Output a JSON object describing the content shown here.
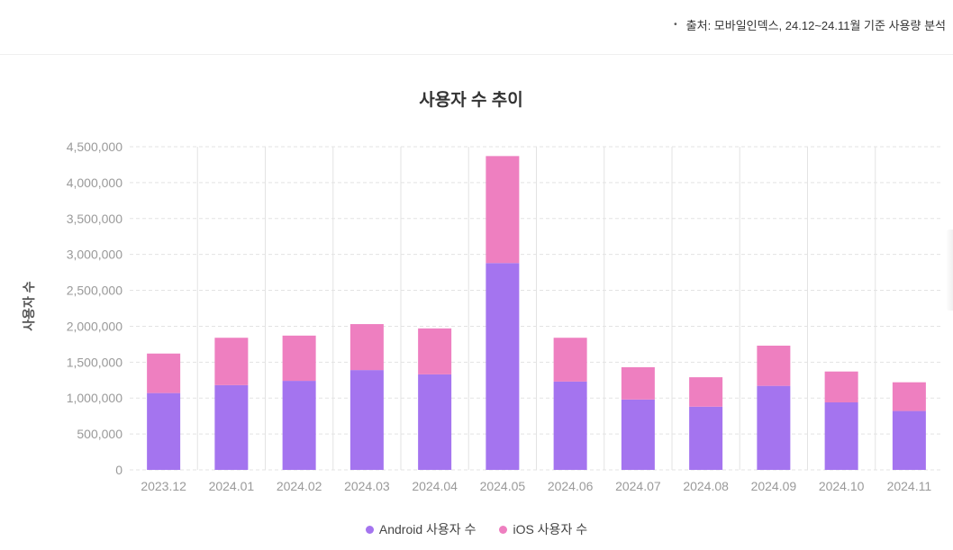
{
  "source": {
    "bullet": "•",
    "text": "출처: 모바일인덱스, 24.12~24.11월 기준 사용량 분석"
  },
  "colors": {
    "android": "#a474ef",
    "ios": "#ee7fc0",
    "grid": "#e3e3e3",
    "tick_text": "#9a9a9a",
    "title_text": "#333333"
  },
  "chart_data": {
    "type": "bar",
    "stacked": true,
    "title": "사용자 수 추이",
    "xlabel": "",
    "ylabel": "사용자 수",
    "ylim": [
      0,
      4500000
    ],
    "yticks": [
      0,
      500000,
      1000000,
      1500000,
      2000000,
      2500000,
      3000000,
      3500000,
      4000000,
      4500000
    ],
    "ytick_labels": [
      "0",
      "500,000",
      "1,000,000",
      "1,500,000",
      "2,000,000",
      "2,500,000",
      "3,000,000",
      "3,500,000",
      "4,000,000",
      "4,500,000"
    ],
    "categories": [
      "2023.12",
      "2024.01",
      "2024.02",
      "2024.03",
      "2024.04",
      "2024.05",
      "2024.06",
      "2024.07",
      "2024.08",
      "2024.09",
      "2024.10",
      "2024.11"
    ],
    "series": [
      {
        "name": "Android 사용자 수",
        "values": [
          1070000,
          1180000,
          1240000,
          1390000,
          1330000,
          2880000,
          1230000,
          980000,
          880000,
          1170000,
          940000,
          820000
        ]
      },
      {
        "name": "iOS 사용자 수",
        "values": [
          550000,
          660000,
          630000,
          640000,
          640000,
          1490000,
          610000,
          450000,
          410000,
          560000,
          430000,
          400000
        ]
      }
    ],
    "legend": "bottom-center",
    "grid": true
  }
}
